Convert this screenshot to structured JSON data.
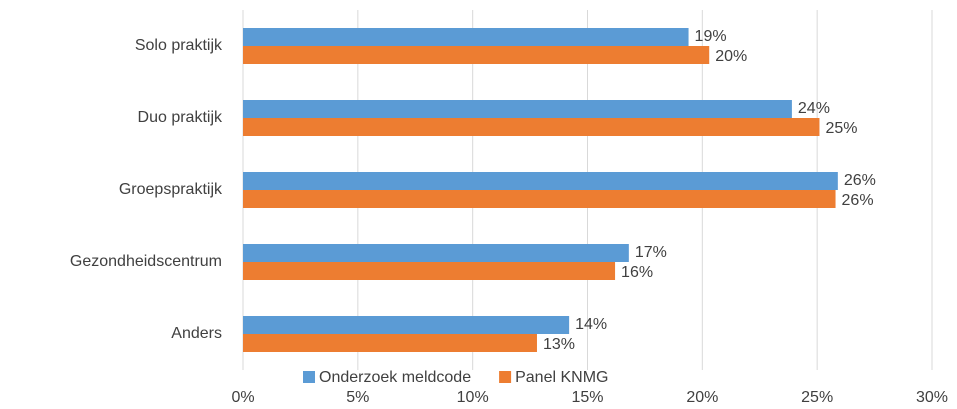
{
  "chart_data": {
    "type": "hbar",
    "categories": [
      "Solo praktijk",
      "Duo praktijk",
      "Groepspraktijk",
      "Gezondheidscentrum",
      "Anders"
    ],
    "series": [
      {
        "name": "Onderzoek meldcode",
        "color": "#5b9bd5",
        "values": [
          19.4,
          23.9,
          25.9,
          16.8,
          14.2
        ],
        "value_labels": [
          "19%",
          "24%",
          "26%",
          "17%",
          "14%"
        ]
      },
      {
        "name": "Panel KNMG",
        "color": "#ed7d31",
        "values": [
          20.3,
          25.1,
          25.8,
          16.2,
          12.8
        ],
        "value_labels": [
          "20%",
          "25%",
          "26%",
          "16%",
          "13%"
        ]
      }
    ],
    "xlim": [
      0,
      30
    ],
    "xticks": [
      {
        "value": 0,
        "label": "0%"
      },
      {
        "value": 5,
        "label": "5%"
      },
      {
        "value": 10,
        "label": "10%"
      },
      {
        "value": 15,
        "label": "15%"
      },
      {
        "value": 20,
        "label": "20%"
      },
      {
        "value": 25,
        "label": "25%"
      },
      {
        "value": 30,
        "label": "30%"
      }
    ],
    "grid": true,
    "legend": "bottom"
  }
}
